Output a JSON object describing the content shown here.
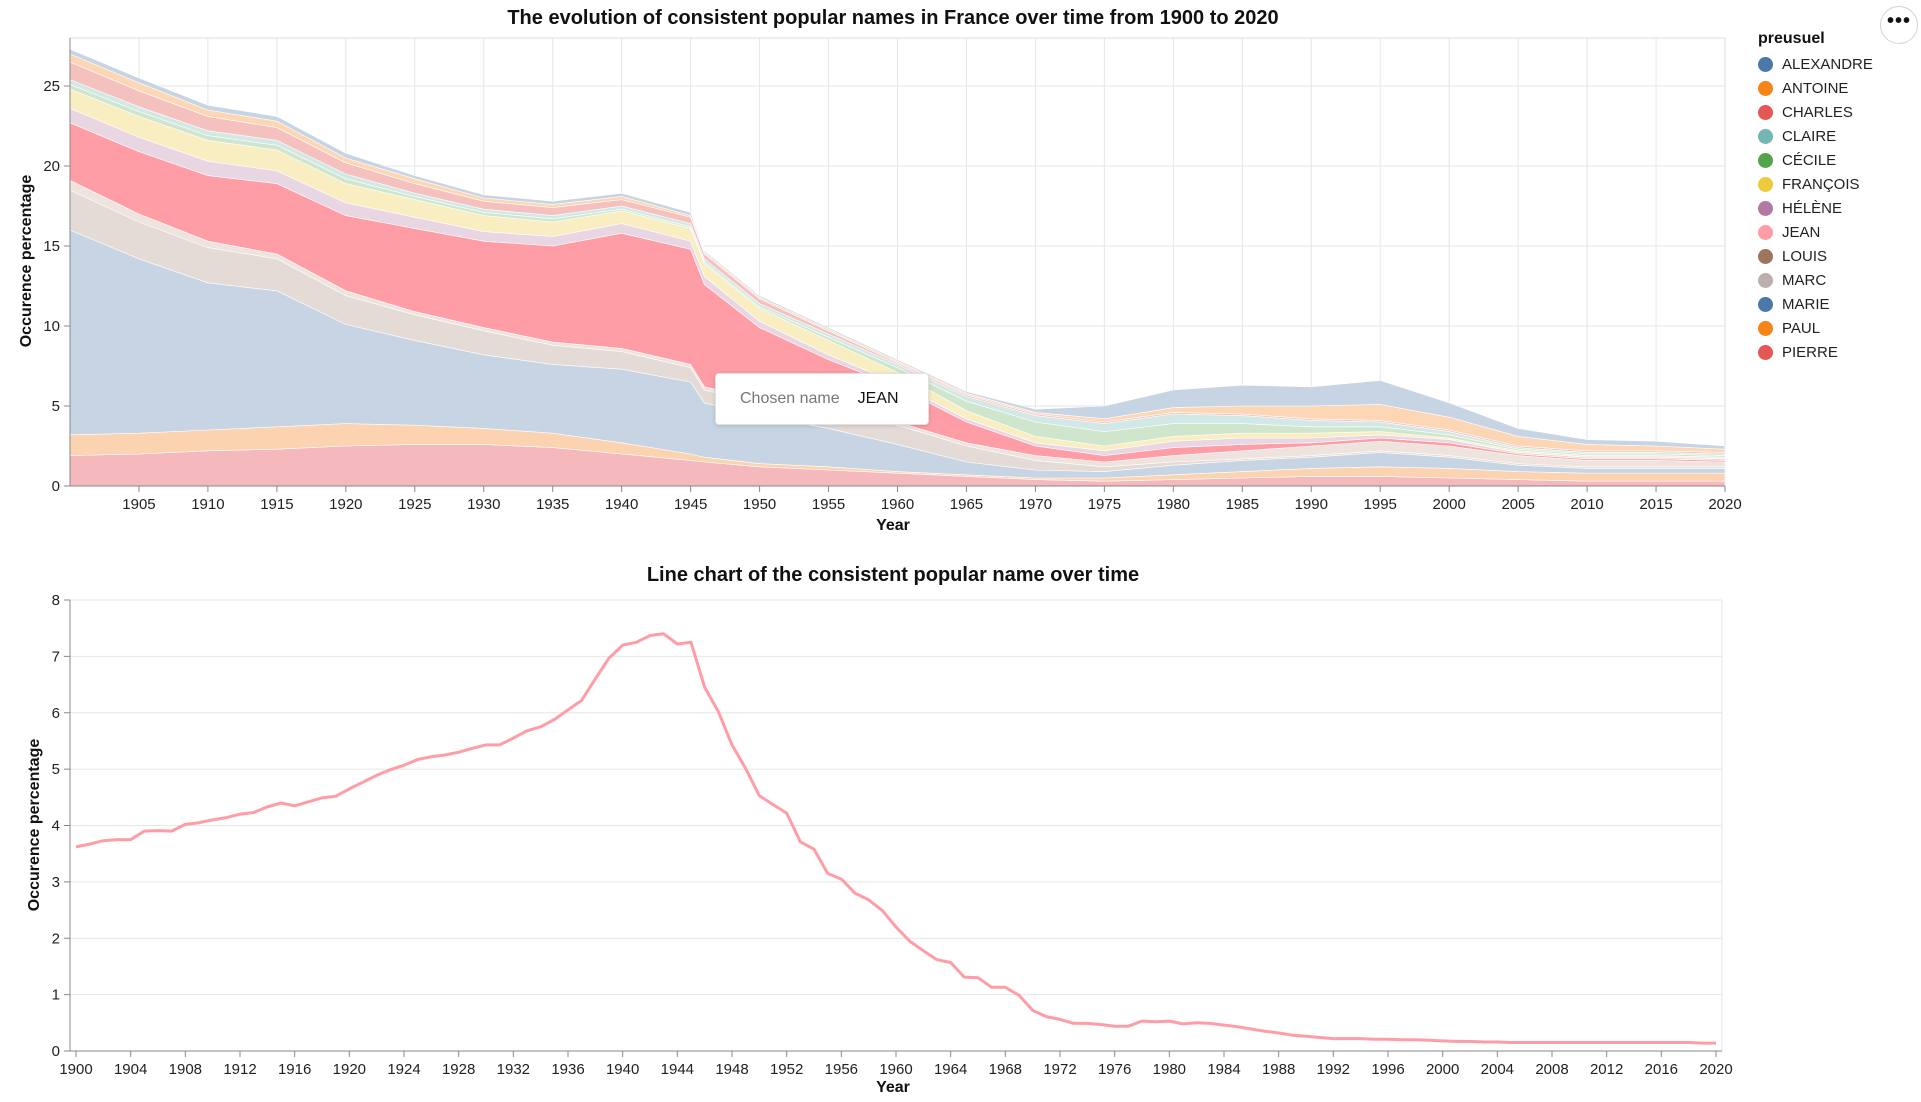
{
  "menu": {
    "label": "•••"
  },
  "tooltip": {
    "key": "Chosen name",
    "value": "JEAN"
  },
  "legend": {
    "title": "preusuel",
    "items": [
      {
        "label": "ALEXANDRE",
        "color": "#4c78a8"
      },
      {
        "label": "ANTOINE",
        "color": "#f58518"
      },
      {
        "label": "CHARLES",
        "color": "#e45756"
      },
      {
        "label": "CLAIRE",
        "color": "#72b7b2"
      },
      {
        "label": "CÉCILE",
        "color": "#54a24b"
      },
      {
        "label": "FRANÇOIS",
        "color": "#eeca3b"
      },
      {
        "label": "HÉLÈNE",
        "color": "#b279a2"
      },
      {
        "label": "JEAN",
        "color": "#ff9da6"
      },
      {
        "label": "LOUIS",
        "color": "#9d755d"
      },
      {
        "label": "MARC",
        "color": "#bab0ac"
      },
      {
        "label": "MARIE",
        "color": "#4c78a8"
      },
      {
        "label": "PAUL",
        "color": "#f58518"
      },
      {
        "label": "PIERRE",
        "color": "#e45756"
      }
    ]
  },
  "chart_data": [
    {
      "type": "area",
      "stacked": true,
      "title": "The evolution of consistent popular names in France over time from 1900 to 2020",
      "xlabel": "Year",
      "ylabel": "Occurence percentage",
      "xlim": [
        1900,
        2020
      ],
      "ylim": [
        0,
        28
      ],
      "xticks": [
        1905,
        1910,
        1915,
        1920,
        1925,
        1930,
        1935,
        1940,
        1945,
        1950,
        1955,
        1960,
        1965,
        1970,
        1975,
        1980,
        1985,
        1990,
        1995,
        2000,
        2005,
        2010,
        2015,
        2020
      ],
      "yticks": [
        0,
        5,
        10,
        15,
        20,
        25
      ],
      "highlighted": "JEAN",
      "x": [
        1900,
        1905,
        1910,
        1915,
        1920,
        1925,
        1930,
        1935,
        1940,
        1945,
        1946,
        1950,
        1955,
        1960,
        1965,
        1970,
        1975,
        1980,
        1985,
        1990,
        1995,
        2000,
        2005,
        2010,
        2015,
        2020
      ],
      "series": [
        {
          "name": "PIERRE",
          "color": "#f4b8bd",
          "values": [
            1.9,
            2.0,
            2.2,
            2.3,
            2.5,
            2.6,
            2.6,
            2.4,
            2.0,
            1.6,
            1.5,
            1.2,
            1.0,
            0.8,
            0.6,
            0.4,
            0.3,
            0.4,
            0.5,
            0.6,
            0.6,
            0.5,
            0.4,
            0.3,
            0.3,
            0.3
          ]
        },
        {
          "name": "PAUL",
          "color": "#fcd3b0",
          "values": [
            1.3,
            1.3,
            1.3,
            1.4,
            1.4,
            1.2,
            1.0,
            0.9,
            0.7,
            0.4,
            0.3,
            0.2,
            0.2,
            0.1,
            0.1,
            0.1,
            0.2,
            0.3,
            0.4,
            0.5,
            0.6,
            0.6,
            0.5,
            0.5,
            0.5,
            0.5
          ]
        },
        {
          "name": "MARIE",
          "color": "#c6d4e3",
          "values": [
            12.8,
            10.9,
            9.2,
            8.5,
            6.2,
            5.3,
            4.6,
            4.3,
            4.6,
            4.5,
            3.4,
            3.0,
            2.4,
            1.7,
            0.8,
            0.5,
            0.4,
            0.6,
            0.7,
            0.7,
            0.9,
            0.7,
            0.4,
            0.3,
            0.3,
            0.3
          ]
        },
        {
          "name": "MARC",
          "color": "#e4dad6",
          "values": [
            2.5,
            2.3,
            2.2,
            2.0,
            1.8,
            1.6,
            1.5,
            1.2,
            1.1,
            0.9,
            0.8,
            0.8,
            1.0,
            1.2,
            1.0,
            0.6,
            0.3,
            0.2,
            0.1,
            0.1,
            0.1,
            0.1,
            0.1,
            0.1,
            0.1,
            0.1
          ]
        },
        {
          "name": "LOUIS",
          "color": "#eee3dd",
          "values": [
            0.6,
            0.5,
            0.4,
            0.3,
            0.3,
            0.2,
            0.2,
            0.2,
            0.2,
            0.2,
            0.2,
            0.2,
            0.2,
            0.2,
            0.2,
            0.3,
            0.3,
            0.4,
            0.5,
            0.6,
            0.6,
            0.6,
            0.5,
            0.4,
            0.4,
            0.3
          ]
        },
        {
          "name": "JEAN",
          "color": "#ff9da6",
          "values": [
            3.6,
            3.9,
            4.1,
            4.4,
            4.7,
            5.2,
            5.4,
            6.0,
            7.2,
            7.2,
            6.4,
            4.5,
            3.1,
            2.2,
            1.3,
            0.6,
            0.4,
            0.5,
            0.4,
            0.2,
            0.2,
            0.2,
            0.1,
            0.1,
            0.1,
            0.1
          ]
        },
        {
          "name": "HÉLÈNE",
          "color": "#e8d6e3",
          "values": [
            0.9,
            0.9,
            0.9,
            0.8,
            0.8,
            0.7,
            0.6,
            0.6,
            0.6,
            0.5,
            0.5,
            0.4,
            0.3,
            0.2,
            0.2,
            0.2,
            0.3,
            0.4,
            0.4,
            0.3,
            0.2,
            0.2,
            0.1,
            0.1,
            0.1,
            0.1
          ]
        },
        {
          "name": "FRANÇOIS",
          "color": "#f9eec2",
          "values": [
            1.2,
            1.3,
            1.3,
            1.3,
            1.2,
            1.1,
            1.0,
            0.9,
            0.8,
            0.8,
            0.8,
            0.8,
            0.9,
            0.7,
            0.5,
            0.4,
            0.3,
            0.3,
            0.3,
            0.3,
            0.2,
            0.1,
            0.1,
            0.1,
            0.1,
            0.1
          ]
        },
        {
          "name": "CÉCILE",
          "color": "#cfe6cc",
          "values": [
            0.3,
            0.3,
            0.3,
            0.3,
            0.3,
            0.2,
            0.2,
            0.2,
            0.1,
            0.1,
            0.1,
            0.1,
            0.2,
            0.3,
            0.6,
            0.9,
            0.9,
            0.8,
            0.6,
            0.4,
            0.3,
            0.2,
            0.1,
            0.1,
            0.1,
            0.1
          ]
        },
        {
          "name": "CLAIRE",
          "color": "#d1e8e6",
          "values": [
            0.3,
            0.3,
            0.3,
            0.3,
            0.3,
            0.2,
            0.2,
            0.2,
            0.2,
            0.2,
            0.2,
            0.2,
            0.2,
            0.2,
            0.3,
            0.4,
            0.5,
            0.6,
            0.5,
            0.4,
            0.3,
            0.2,
            0.1,
            0.1,
            0.1,
            0.1
          ]
        },
        {
          "name": "CHARLES",
          "color": "#f5c1bf",
          "values": [
            1.1,
            1.0,
            0.9,
            0.8,
            0.7,
            0.6,
            0.5,
            0.5,
            0.4,
            0.4,
            0.3,
            0.3,
            0.2,
            0.1,
            0.1,
            0.1,
            0.1,
            0.1,
            0.1,
            0.1,
            0.1,
            0.1,
            0.1,
            0.1,
            0.1,
            0.1
          ]
        },
        {
          "name": "ANTOINE",
          "color": "#fcd6b5",
          "values": [
            0.5,
            0.5,
            0.4,
            0.4,
            0.3,
            0.3,
            0.2,
            0.2,
            0.2,
            0.1,
            0.1,
            0.1,
            0.1,
            0.1,
            0.1,
            0.1,
            0.2,
            0.3,
            0.5,
            0.8,
            1.0,
            0.8,
            0.6,
            0.4,
            0.3,
            0.2
          ]
        },
        {
          "name": "ALEXANDRE",
          "color": "#c7d4e4",
          "values": [
            0.3,
            0.3,
            0.3,
            0.3,
            0.3,
            0.2,
            0.2,
            0.2,
            0.2,
            0.2,
            0.1,
            0.1,
            0.1,
            0.1,
            0.1,
            0.2,
            0.8,
            1.1,
            1.3,
            1.2,
            1.5,
            0.9,
            0.5,
            0.3,
            0.3,
            0.2
          ]
        }
      ]
    },
    {
      "type": "line",
      "title": "Line chart of the consistent popular name over time",
      "xlabel": "Year",
      "ylabel": "Occurence percentage",
      "xlim": [
        1900,
        2020
      ],
      "ylim": [
        0,
        8
      ],
      "xticks": [
        1900,
        1904,
        1908,
        1912,
        1916,
        1920,
        1924,
        1928,
        1932,
        1936,
        1940,
        1944,
        1948,
        1952,
        1956,
        1960,
        1964,
        1968,
        1972,
        1976,
        1980,
        1984,
        1988,
        1992,
        1996,
        2000,
        2004,
        2008,
        2012,
        2016,
        2020
      ],
      "yticks": [
        0,
        1,
        2,
        3,
        4,
        5,
        6,
        7,
        8
      ],
      "series": [
        {
          "name": "JEAN",
          "color": "#ff9da6",
          "x": [
            1900,
            1901,
            1902,
            1903,
            1904,
            1905,
            1906,
            1907,
            1908,
            1909,
            1910,
            1911,
            1912,
            1913,
            1914,
            1915,
            1916,
            1917,
            1918,
            1919,
            1920,
            1921,
            1922,
            1923,
            1924,
            1925,
            1926,
            1927,
            1928,
            1929,
            1930,
            1931,
            1932,
            1933,
            1934,
            1935,
            1936,
            1937,
            1938,
            1939,
            1940,
            1941,
            1942,
            1943,
            1944,
            1945,
            1946,
            1947,
            1948,
            1949,
            1950,
            1951,
            1952,
            1953,
            1954,
            1955,
            1956,
            1957,
            1958,
            1959,
            1960,
            1961,
            1962,
            1963,
            1964,
            1965,
            1966,
            1967,
            1968,
            1969,
            1970,
            1971,
            1972,
            1973,
            1974,
            1975,
            1976,
            1977,
            1978,
            1979,
            1980,
            1981,
            1982,
            1983,
            1984,
            1985,
            1986,
            1987,
            1988,
            1989,
            1990,
            1991,
            1992,
            1993,
            1994,
            1995,
            1996,
            1997,
            1998,
            1999,
            2000,
            2001,
            2002,
            2003,
            2004,
            2005,
            2006,
            2007,
            2008,
            2009,
            2010,
            2011,
            2012,
            2013,
            2014,
            2015,
            2016,
            2017,
            2018,
            2019,
            2020
          ],
          "values": [
            3.62,
            3.67,
            3.73,
            3.75,
            3.75,
            3.9,
            3.91,
            3.9,
            4.02,
            4.05,
            4.1,
            4.14,
            4.2,
            4.23,
            4.33,
            4.4,
            4.35,
            4.42,
            4.49,
            4.52,
            4.65,
            4.77,
            4.89,
            4.99,
            5.07,
            5.17,
            5.22,
            5.25,
            5.3,
            5.37,
            5.43,
            5.43,
            5.55,
            5.68,
            5.75,
            5.88,
            6.05,
            6.22,
            6.6,
            6.97,
            7.2,
            7.25,
            7.37,
            7.4,
            7.22,
            7.25,
            6.45,
            6.02,
            5.43,
            5.01,
            4.53,
            4.37,
            4.22,
            3.71,
            3.58,
            3.15,
            3.05,
            2.8,
            2.68,
            2.49,
            2.2,
            1.95,
            1.78,
            1.62,
            1.57,
            1.31,
            1.3,
            1.13,
            1.13,
            0.99,
            0.72,
            0.61,
            0.56,
            0.49,
            0.49,
            0.47,
            0.44,
            0.44,
            0.53,
            0.52,
            0.53,
            0.48,
            0.5,
            0.49,
            0.46,
            0.43,
            0.39,
            0.35,
            0.32,
            0.28,
            0.26,
            0.24,
            0.22,
            0.22,
            0.22,
            0.21,
            0.21,
            0.2,
            0.2,
            0.19,
            0.18,
            0.17,
            0.17,
            0.16,
            0.16,
            0.15,
            0.15,
            0.15,
            0.15,
            0.15,
            0.15,
            0.15,
            0.15,
            0.15,
            0.15,
            0.15,
            0.15,
            0.15,
            0.15,
            0.14,
            0.14
          ]
        }
      ]
    }
  ]
}
